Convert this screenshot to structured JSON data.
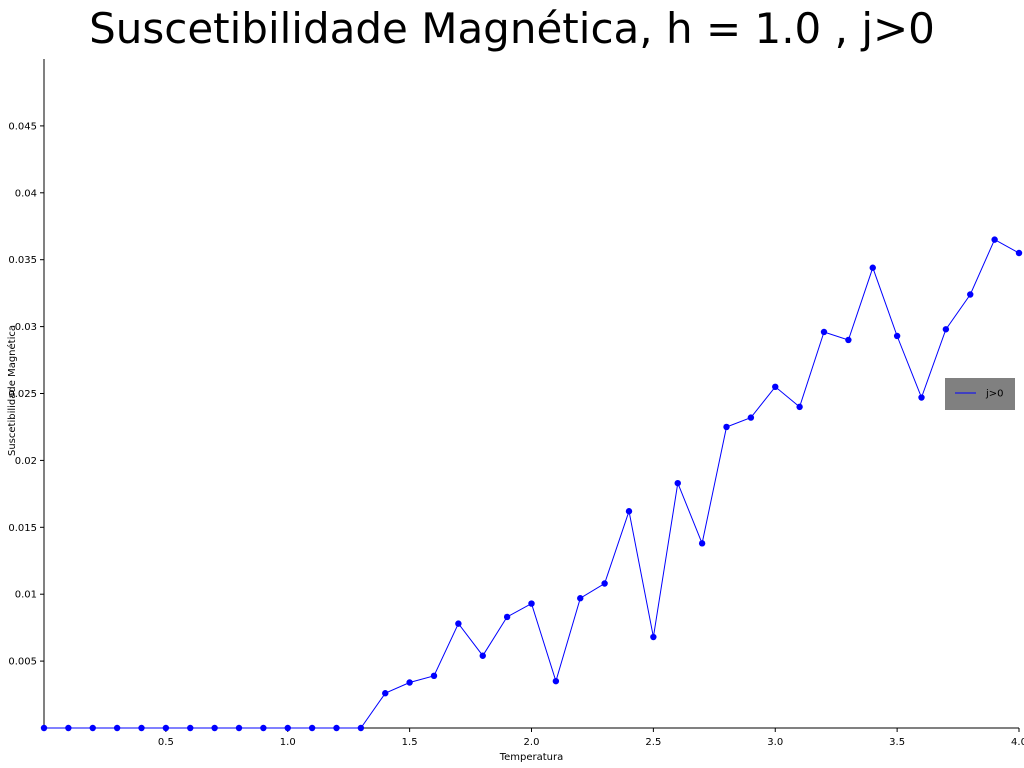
{
  "chart_data": {
    "type": "line",
    "title": "Suscetibilidade Magnética, h = 1.0 , j>0",
    "xlabel": "Temperatura",
    "ylabel": "Suscetibilidade Magnética",
    "xlim": [
      0,
      4.0
    ],
    "ylim": [
      0,
      0.05
    ],
    "x_ticks": [
      "0.5",
      "1.0",
      "1.5",
      "2.0",
      "2.5",
      "3.0",
      "3.5",
      "4.0"
    ],
    "y_ticks": [
      "0.005",
      "0.01",
      "0.015",
      "0.02",
      "0.025",
      "0.03",
      "0.035",
      "0.04",
      "0.045"
    ],
    "grid": false,
    "legend_position": "right",
    "series": [
      {
        "name": "j>0",
        "color": "#0000ff",
        "marker": "circle",
        "x": [
          0.0,
          0.1,
          0.2,
          0.3,
          0.4,
          0.5,
          0.6,
          0.7,
          0.8,
          0.9,
          1.0,
          1.1,
          1.2,
          1.3,
          1.4,
          1.5,
          1.6,
          1.7,
          1.8,
          1.9,
          2.0,
          2.1,
          2.2,
          2.3,
          2.4,
          2.5,
          2.6,
          2.7,
          2.8,
          2.9,
          3.0,
          3.1,
          3.2,
          3.3,
          3.4,
          3.5,
          3.6,
          3.7,
          3.8,
          3.9,
          4.0
        ],
        "y": [
          0.0,
          0.0,
          0.0,
          0.0,
          0.0,
          0.0,
          0.0,
          0.0,
          0.0,
          0.0,
          0.0,
          0.0,
          0.0,
          0.0,
          0.0026,
          0.0034,
          0.0039,
          0.0078,
          0.0054,
          0.0083,
          0.0093,
          0.0035,
          0.0097,
          0.0108,
          0.0162,
          0.0068,
          0.0183,
          0.0138,
          0.0225,
          0.0232,
          0.0255,
          0.024,
          0.0296,
          0.029,
          0.0344,
          0.0293,
          0.0247,
          0.0298,
          0.0324,
          0.0365,
          0.0355
        ]
      }
    ]
  }
}
